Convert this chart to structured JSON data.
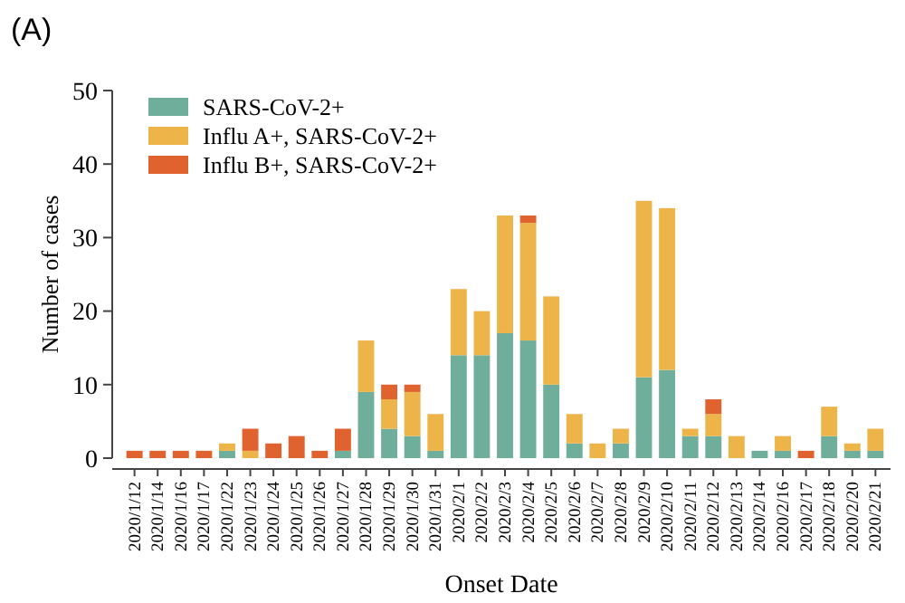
{
  "chart_data": {
    "type": "bar",
    "stacked": true,
    "annotations": [
      "(A)"
    ],
    "xlabel": "Onset Date",
    "ylabel": "Number of  cases",
    "categories": [
      "2020/1/12",
      "2020/1/14",
      "2020/1/16",
      "2020/1/17",
      "2020/1/22",
      "2020/1/23",
      "2020/1/24",
      "2020/1/25",
      "2020/1/26",
      "2020/1/27",
      "2020/1/28",
      "2020/1/29",
      "2020/1/30",
      "2020/1/31",
      "2020/2/1",
      "2020/2/2",
      "2020/2/3",
      "2020/2/4",
      "2020/2/5",
      "2020/2/6",
      "2020/2/7",
      "2020/2/8",
      "2020/2/9",
      "2020/2/10",
      "2020/2/11",
      "2020/2/12",
      "2020/2/13",
      "2020/2/14",
      "2020/2/16",
      "2020/2/17",
      "2020/2/18",
      "2020/2/20",
      "2020/2/21"
    ],
    "series": [
      {
        "name": "SARS-CoV-2+",
        "color": "#6fae9a",
        "values": [
          0,
          0,
          0,
          0,
          1,
          0,
          0,
          0,
          0,
          1,
          9,
          4,
          3,
          1,
          14,
          14,
          17,
          16,
          10,
          2,
          0,
          2,
          11,
          12,
          3,
          3,
          0,
          1,
          1,
          0,
          3,
          1,
          1
        ]
      },
      {
        "name": "Influ A+, SARS-CoV-2+",
        "color": "#edb44a",
        "values": [
          0,
          0,
          0,
          0,
          1,
          1,
          0,
          0,
          0,
          0,
          7,
          4,
          6,
          5,
          9,
          6,
          16,
          16,
          12,
          4,
          2,
          2,
          24,
          22,
          1,
          3,
          3,
          0,
          2,
          0,
          4,
          1,
          3
        ]
      },
      {
        "name": "Influ B+, SARS-CoV-2+",
        "color": "#e0622f",
        "values": [
          1,
          1,
          1,
          1,
          0,
          3,
          2,
          3,
          1,
          3,
          0,
          2,
          1,
          0,
          0,
          0,
          0,
          1,
          0,
          0,
          0,
          0,
          0,
          0,
          0,
          2,
          0,
          0,
          0,
          1,
          0,
          0,
          0
        ]
      }
    ],
    "ylim": [
      0,
      50
    ],
    "yticks": [
      0,
      10,
      20,
      30,
      40,
      50
    ],
    "grid": false,
    "legend": "top left"
  }
}
